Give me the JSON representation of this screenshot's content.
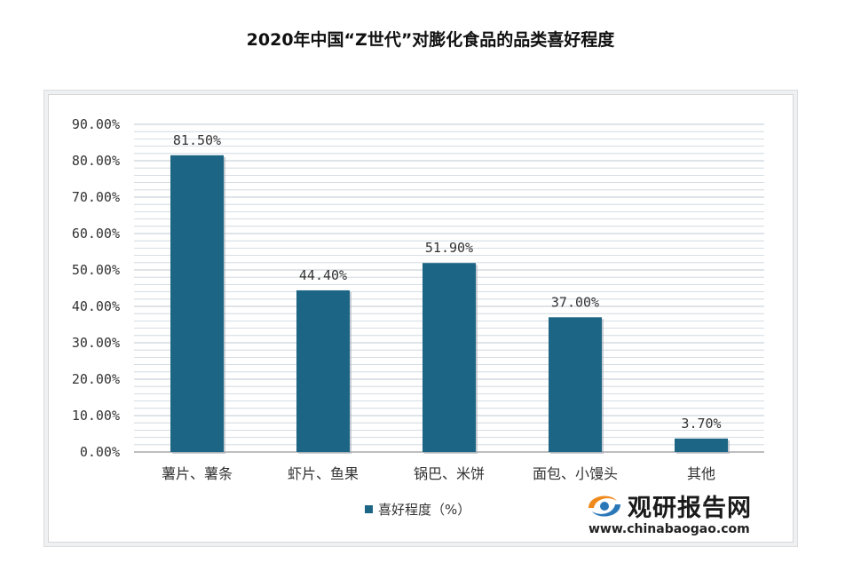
{
  "page": {
    "title": "2020年中国“Z世代”对膨化食品的品类喜好程度"
  },
  "chart_data": {
    "type": "bar",
    "title": "2020年中国“Z世代”对膨化食品的品类喜好程度",
    "categories": [
      "薯片、薯条",
      "虾片、鱼果",
      "锅巴、米饼",
      "面包、小馒头",
      "其他"
    ],
    "series": [
      {
        "name": "喜好程度（%）",
        "values": [
          81.5,
          44.4,
          51.9,
          37.0,
          3.7
        ]
      }
    ],
    "data_labels": [
      "81.50%",
      "44.40%",
      "51.90%",
      "37.00%",
      "3.70%"
    ],
    "y_ticks": [
      "0.00%",
      "10.00%",
      "20.00%",
      "30.00%",
      "40.00%",
      "50.00%",
      "60.00%",
      "70.00%",
      "80.00%",
      "90.00%"
    ],
    "ylim": [
      0,
      90
    ],
    "y_step": 10,
    "xlabel": "",
    "ylabel": "",
    "grid": true,
    "legend_position": "bottom",
    "colors": {
      "bar": "#1d6584",
      "grid": "#c9d3dc",
      "axis": "#888888"
    }
  },
  "watermark": {
    "logo_text": "观研报告网",
    "url": "www.chinabaogao.com",
    "icon": "chinabaogao-logo-icon",
    "icon_colors": {
      "orange": "#f08a1c",
      "blue": "#2a78b8"
    }
  }
}
